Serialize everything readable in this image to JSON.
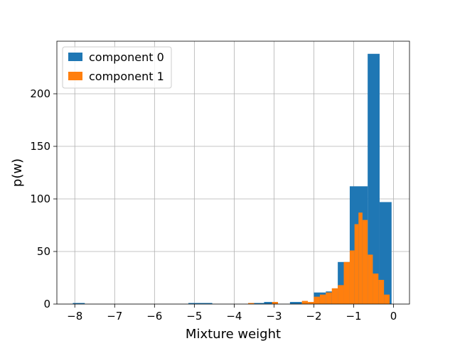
{
  "chart_data": {
    "type": "bar",
    "title": "",
    "xlabel": "Mixture weight",
    "ylabel": "p(w)",
    "xlim": [
      -8.45,
      0.4
    ],
    "ylim": [
      0,
      250
    ],
    "grid": true,
    "legend_position": "top-left",
    "xticks": [
      -8,
      -7,
      -6,
      -5,
      -4,
      -3,
      -2,
      -1,
      0
    ],
    "xtick_labels": [
      "−8",
      "−7",
      "−6",
      "−5",
      "−4",
      "−3",
      "−2",
      "−1",
      "0"
    ],
    "yticks": [
      0,
      50,
      100,
      150,
      200
    ],
    "ytick_labels": [
      "0",
      "50",
      "100",
      "150",
      "200"
    ],
    "series": [
      {
        "name": "component 0",
        "color": "#1f77b4",
        "bins": [
          {
            "x0": -8.05,
            "x1": -7.75,
            "value": 1
          },
          {
            "x0": -5.15,
            "x1": -4.55,
            "value": 1
          },
          {
            "x0": -3.55,
            "x1": -3.25,
            "value": 1
          },
          {
            "x0": -3.25,
            "x1": -2.95,
            "value": 2
          },
          {
            "x0": -2.6,
            "x1": -2.3,
            "value": 2
          },
          {
            "x0": -2.0,
            "x1": -1.7,
            "value": 11
          },
          {
            "x0": -1.7,
            "x1": -1.4,
            "value": 12
          },
          {
            "x0": -1.4,
            "x1": -1.1,
            "value": 40
          },
          {
            "x0": -1.1,
            "x1": -0.65,
            "value": 112
          },
          {
            "x0": -0.65,
            "x1": -0.35,
            "value": 238
          },
          {
            "x0": -0.35,
            "x1": -0.05,
            "value": 97
          }
        ]
      },
      {
        "name": "component 1",
        "color": "#ff7f0e",
        "bins": [
          {
            "x0": -3.65,
            "x1": -3.5,
            "value": 1
          },
          {
            "x0": -3.05,
            "x1": -2.9,
            "value": 2
          },
          {
            "x0": -2.3,
            "x1": -2.15,
            "value": 3
          },
          {
            "x0": -2.15,
            "x1": -2.0,
            "value": 2
          },
          {
            "x0": -2.0,
            "x1": -1.85,
            "value": 7
          },
          {
            "x0": -1.85,
            "x1": -1.7,
            "value": 9
          },
          {
            "x0": -1.7,
            "x1": -1.55,
            "value": 11
          },
          {
            "x0": -1.55,
            "x1": -1.4,
            "value": 15
          },
          {
            "x0": -1.4,
            "x1": -1.25,
            "value": 18
          },
          {
            "x0": -1.25,
            "x1": -1.1,
            "value": 40
          },
          {
            "x0": -1.1,
            "x1": -0.98,
            "value": 51
          },
          {
            "x0": -0.98,
            "x1": -0.88,
            "value": 76
          },
          {
            "x0": -0.88,
            "x1": -0.78,
            "value": 87
          },
          {
            "x0": -0.78,
            "x1": -0.65,
            "value": 80
          },
          {
            "x0": -0.65,
            "x1": -0.52,
            "value": 47
          },
          {
            "x0": -0.52,
            "x1": -0.38,
            "value": 29
          },
          {
            "x0": -0.38,
            "x1": -0.24,
            "value": 23
          },
          {
            "x0": -0.24,
            "x1": -0.1,
            "value": 9
          }
        ]
      }
    ]
  }
}
